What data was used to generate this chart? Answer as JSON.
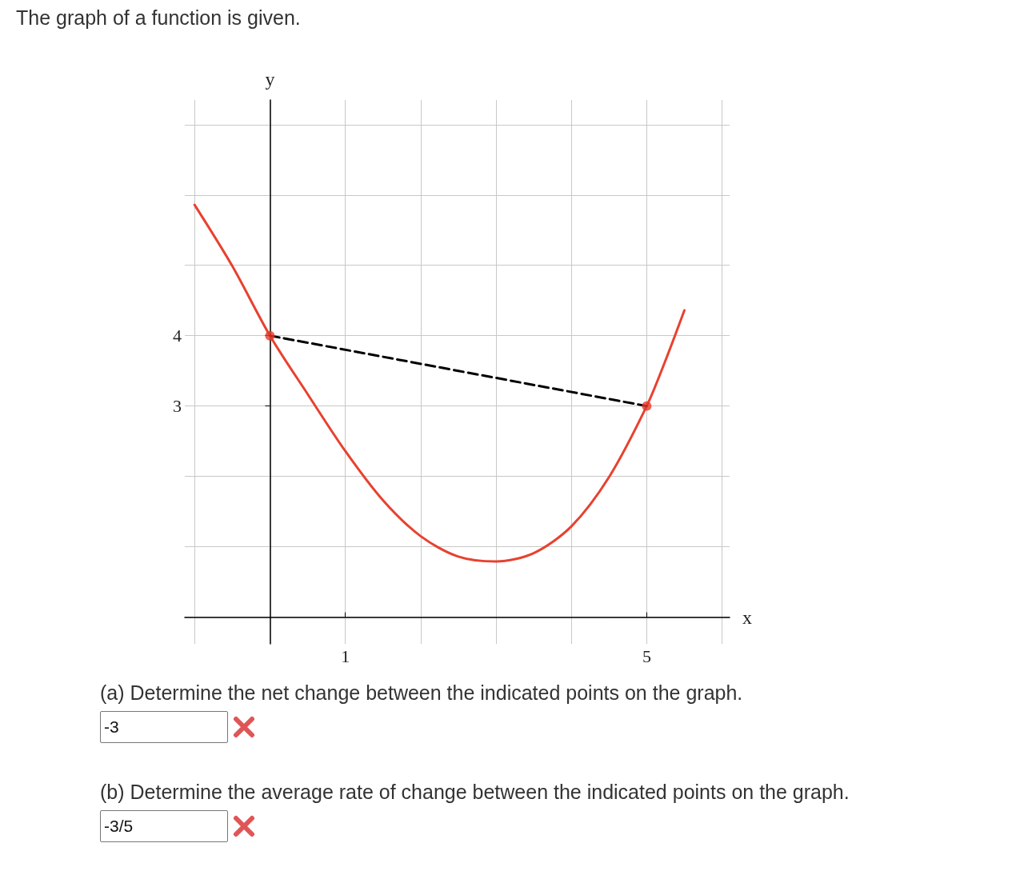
{
  "chart_data": {
    "type": "line",
    "title": "The graph of a function is given.",
    "xlabel": "x",
    "ylabel": "y",
    "xlim": [
      -1.13,
      6.1
    ],
    "ylim": [
      -0.38,
      7.35
    ],
    "xticks": [
      {
        "value": -1,
        "label": null
      },
      {
        "value": 0,
        "label": null
      },
      1,
      {
        "value": 2,
        "label": null
      },
      {
        "value": 3,
        "label": null
      },
      {
        "value": 4,
        "label": null
      },
      5,
      {
        "value": 6,
        "label": null
      }
    ],
    "yticks": [
      {
        "value": 0,
        "label": null
      },
      {
        "value": 1,
        "label": null
      },
      {
        "value": 2,
        "label": null
      },
      3,
      4,
      {
        "value": 5,
        "label": null
      },
      {
        "value": 6,
        "label": null
      },
      {
        "value": 7,
        "label": null
      }
    ],
    "grid": true,
    "series": [
      {
        "color": "#e8412f",
        "marker": "none",
        "line_style": "solid",
        "x": [
          -1,
          -0.5,
          0,
          0.5,
          1,
          1.5,
          2,
          2.5,
          3,
          3.5,
          4,
          4.5,
          5,
          5.25,
          5.5
        ],
        "values": [
          5.86,
          4.99,
          4,
          3.17,
          2.36,
          1.66,
          1.15,
          0.86,
          0.79,
          0.91,
          1.29,
          1.99,
          3,
          3.65,
          4.36
        ]
      },
      {
        "color": "#000000",
        "marker": "none",
        "line_style": "dashed",
        "x": [
          0,
          5
        ],
        "values": [
          4,
          3
        ]
      },
      {
        "type": "scatter",
        "color": "#e8392a",
        "marker": "circle",
        "x": [
          0,
          5
        ],
        "values": [
          4,
          3
        ]
      }
    ],
    "annotations": [
      "(a) Determine the net change between the indicated points on the graph.",
      "-3",
      "(b) Determine the average rate of change between the indicated points on the graph.",
      "-3/5"
    ]
  }
}
